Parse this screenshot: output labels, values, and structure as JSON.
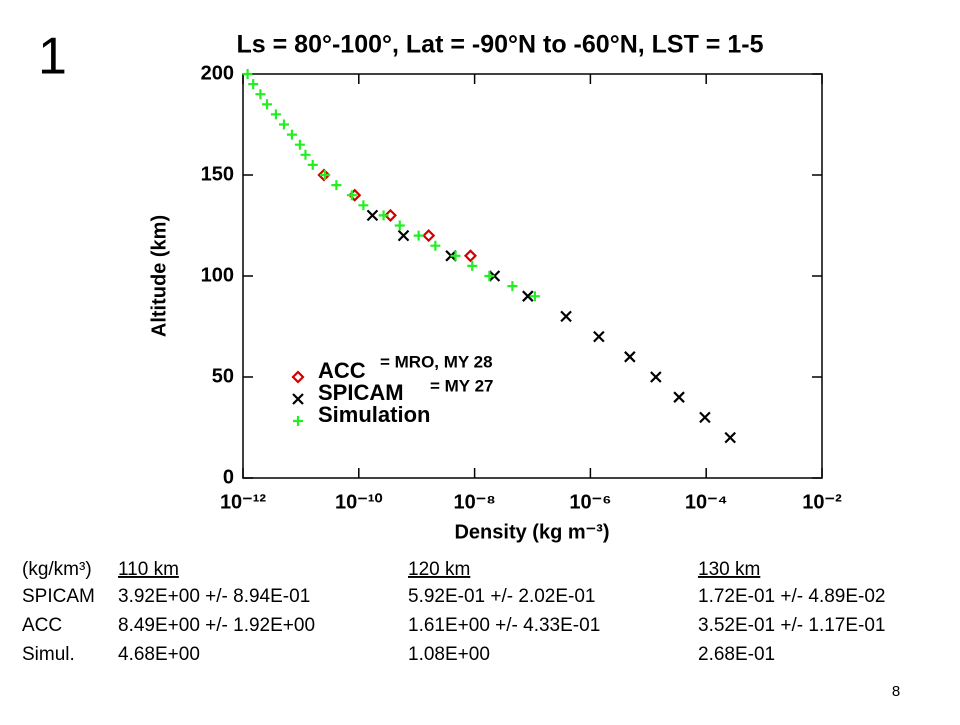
{
  "slide_label": "1",
  "page_number": "8",
  "chart_data": {
    "type": "scatter",
    "title": "Ls = 80°-100°, Lat = -90°N to -60°N, LST = 1-5",
    "x_label": "Density (kg m⁻³)",
    "y_label": "Altitude (km)",
    "log_x": true,
    "xlim": [
      1e-12,
      0.01
    ],
    "xticks": [
      {
        "value": 1e-12,
        "label": "10⁻¹²"
      },
      {
        "value": 1e-10,
        "label": "10⁻¹⁰"
      },
      {
        "value": 1e-08,
        "label": "10⁻⁸"
      },
      {
        "value": 1e-06,
        "label": "10⁻⁶"
      },
      {
        "value": 0.0001,
        "label": "10⁻⁴"
      },
      {
        "value": 0.01,
        "label": "10⁻²"
      }
    ],
    "ylim": [
      0,
      200
    ],
    "yticks": [
      0,
      50,
      100,
      150,
      200
    ],
    "legend": "lower left",
    "annotations": [
      "= MRO, MY 28",
      "= MY 27"
    ],
    "series": [
      {
        "name": "ACC",
        "color": "#d40000",
        "marker": "diamond",
        "x": [
          2.5e-11,
          8.5e-11,
          3.52e-10,
          1.61e-09,
          8.49e-09
        ],
        "y": [
          150,
          140,
          130,
          120,
          110
        ]
      },
      {
        "name": "SPICAM",
        "color": "#000000",
        "marker": "x",
        "x": [
          1.72e-10,
          5.92e-10,
          3.92e-09,
          2.2e-08,
          8.3e-08,
          3.8e-07,
          1.4e-06,
          4.8e-06,
          1.35e-05,
          3.4e-05,
          9.5e-05,
          0.00026
        ],
        "y": [
          130,
          120,
          110,
          100,
          90,
          80,
          70,
          60,
          50,
          40,
          30,
          20
        ]
      },
      {
        "name": "Simulation",
        "color": "#22ee22",
        "marker": "plus",
        "x": [
          1.2e-12,
          1.5e-12,
          2e-12,
          2.6e-12,
          3.7e-12,
          5.1e-12,
          7e-12,
          9.6e-12,
          1.2e-11,
          1.6e-11,
          2.6e-11,
          4.1e-11,
          7.6e-11,
          1.2e-10,
          2.68e-10,
          5.1e-10,
          1.08e-09,
          2.1e-09,
          4.68e-09,
          9.1e-09,
          1.8e-08,
          4.5e-08,
          1.1e-07
        ],
        "y": [
          200,
          195,
          190,
          185,
          180,
          175,
          170,
          165,
          160,
          155,
          150,
          145,
          140,
          135,
          130,
          125,
          120,
          115,
          110,
          105,
          100,
          95,
          90
        ]
      }
    ]
  },
  "table": {
    "header": [
      "(kg/km³)",
      "110 km",
      "120 km",
      "130 km"
    ],
    "rows": [
      [
        "SPICAM",
        "3.92E+00 +/- 8.94E-01",
        "5.92E-01 +/- 2.02E-01",
        "1.72E-01 +/- 4.89E-02"
      ],
      [
        "ACC",
        "8.49E+00 +/- 1.92E+00",
        "1.61E+00 +/- 4.33E-01",
        "3.52E-01 +/- 1.17E-01"
      ],
      [
        "Simul.",
        "4.68E+00",
        "1.08E+00",
        "2.68E-01"
      ]
    ]
  }
}
